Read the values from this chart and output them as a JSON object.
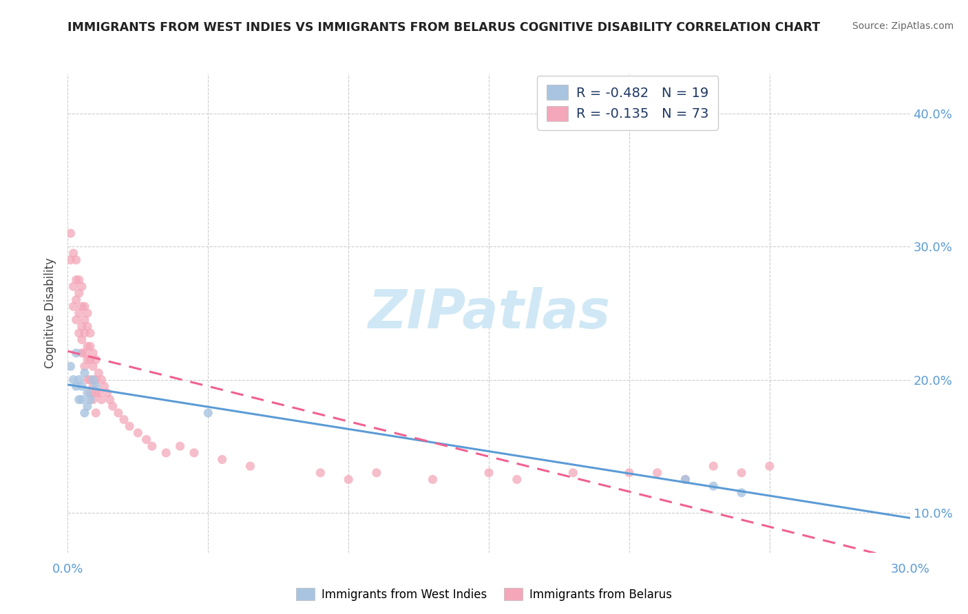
{
  "title": "IMMIGRANTS FROM WEST INDIES VS IMMIGRANTS FROM BELARUS COGNITIVE DISABILITY CORRELATION CHART",
  "source": "Source: ZipAtlas.com",
  "legend_label1": "Immigrants from West Indies",
  "legend_label2": "Immigrants from Belarus",
  "r1": -0.482,
  "n1": 19,
  "r2": -0.135,
  "n2": 73,
  "color_west_indies": "#a8c4e0",
  "color_belarus": "#f4a7b9",
  "color_line1": "#5b9bd5",
  "color_line2": "#f06090",
  "watermark_color": "#d0e8f5",
  "ylabel": "Cognitive Disability",
  "west_indies_x": [
    0.001,
    0.002,
    0.003,
    0.003,
    0.004,
    0.004,
    0.005,
    0.005,
    0.006,
    0.006,
    0.007,
    0.007,
    0.008,
    0.009,
    0.01,
    0.05,
    0.22,
    0.23,
    0.24
  ],
  "west_indies_y": [
    0.21,
    0.2,
    0.22,
    0.195,
    0.185,
    0.2,
    0.195,
    0.185,
    0.205,
    0.175,
    0.19,
    0.18,
    0.185,
    0.2,
    0.195,
    0.175,
    0.125,
    0.12,
    0.115
  ],
  "belarus_x": [
    0.001,
    0.001,
    0.002,
    0.002,
    0.002,
    0.003,
    0.003,
    0.003,
    0.003,
    0.004,
    0.004,
    0.004,
    0.004,
    0.005,
    0.005,
    0.005,
    0.005,
    0.005,
    0.006,
    0.006,
    0.006,
    0.006,
    0.006,
    0.007,
    0.007,
    0.007,
    0.007,
    0.007,
    0.008,
    0.008,
    0.008,
    0.008,
    0.008,
    0.009,
    0.009,
    0.009,
    0.009,
    0.01,
    0.01,
    0.01,
    0.01,
    0.011,
    0.011,
    0.012,
    0.012,
    0.013,
    0.014,
    0.015,
    0.016,
    0.018,
    0.02,
    0.022,
    0.025,
    0.028,
    0.03,
    0.035,
    0.04,
    0.045,
    0.055,
    0.065,
    0.09,
    0.1,
    0.11,
    0.13,
    0.15,
    0.16,
    0.18,
    0.2,
    0.21,
    0.22,
    0.23,
    0.24,
    0.25
  ],
  "belarus_y": [
    0.29,
    0.31,
    0.295,
    0.27,
    0.255,
    0.29,
    0.275,
    0.26,
    0.245,
    0.275,
    0.265,
    0.25,
    0.235,
    0.27,
    0.255,
    0.24,
    0.23,
    0.22,
    0.255,
    0.245,
    0.235,
    0.22,
    0.21,
    0.25,
    0.24,
    0.225,
    0.215,
    0.2,
    0.235,
    0.225,
    0.215,
    0.2,
    0.19,
    0.22,
    0.21,
    0.195,
    0.185,
    0.215,
    0.2,
    0.19,
    0.175,
    0.205,
    0.19,
    0.2,
    0.185,
    0.195,
    0.19,
    0.185,
    0.18,
    0.175,
    0.17,
    0.165,
    0.16,
    0.155,
    0.15,
    0.145,
    0.15,
    0.145,
    0.14,
    0.135,
    0.13,
    0.125,
    0.13,
    0.125,
    0.13,
    0.125,
    0.13,
    0.13,
    0.13,
    0.125,
    0.135,
    0.13,
    0.135
  ],
  "xlim": [
    0.0,
    0.3
  ],
  "ylim": [
    0.07,
    0.43
  ],
  "xticks": [
    0.0,
    0.05,
    0.1,
    0.15,
    0.2,
    0.25,
    0.3
  ],
  "yticks": [
    0.1,
    0.2,
    0.3,
    0.4
  ],
  "ytick_labels": [
    "10.0%",
    "20.0%",
    "30.0%",
    "40.0%"
  ],
  "xtick_left_label": "0.0%",
  "xtick_right_label": "30.0%",
  "tick_color": "#5b9bd5"
}
